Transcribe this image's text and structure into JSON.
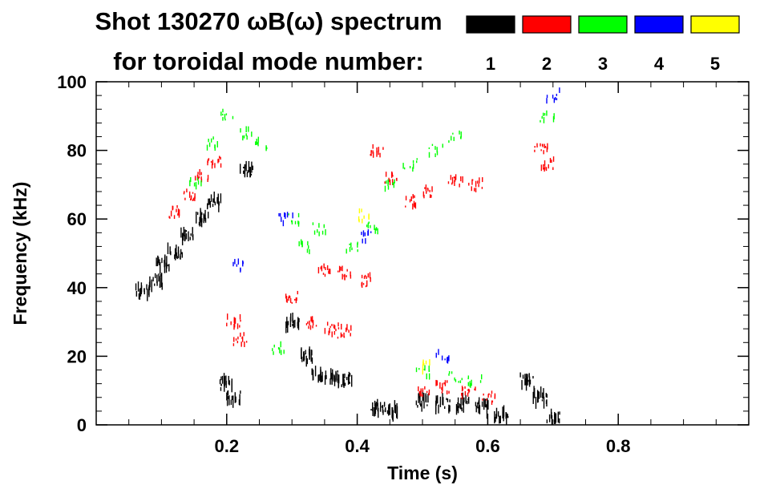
{
  "chart_data": {
    "type": "heatmap",
    "title_line1": "Shot 130270 ωB(ω) spectrum",
    "title_line2": "for toroidal mode number:",
    "xlabel": "Time (s)",
    "ylabel": "Frequency (kHz)",
    "xlim": [
      0.0,
      1.0
    ],
    "ylim": [
      0,
      100
    ],
    "x_ticks": [
      0.2,
      0.4,
      0.6,
      0.8
    ],
    "y_ticks": [
      0,
      20,
      40,
      60,
      80,
      100
    ],
    "grid": false,
    "legend_placement": "top-right",
    "legend": [
      {
        "label": "1",
        "color": "#000000"
      },
      {
        "label": "2",
        "color": "#ff0000"
      },
      {
        "label": "3",
        "color": "#00ff00"
      },
      {
        "label": "4",
        "color": "#0000ff"
      },
      {
        "label": "5",
        "color": "#ffff00"
      }
    ],
    "series": [
      {
        "n": 1,
        "points": [
          [
            0.07,
            39
          ],
          [
            0.09,
            42
          ],
          [
            0.1,
            47
          ],
          [
            0.12,
            50
          ],
          [
            0.14,
            55
          ],
          [
            0.16,
            60
          ],
          [
            0.18,
            65
          ],
          [
            0.2,
            12
          ],
          [
            0.21,
            8
          ],
          [
            0.23,
            74
          ],
          [
            0.3,
            30
          ],
          [
            0.32,
            20
          ],
          [
            0.34,
            15
          ],
          [
            0.36,
            14
          ],
          [
            0.38,
            13
          ],
          [
            0.43,
            5
          ],
          [
            0.45,
            4
          ],
          [
            0.5,
            7
          ],
          [
            0.53,
            6
          ],
          [
            0.56,
            6
          ],
          [
            0.59,
            5
          ],
          [
            0.62,
            3
          ],
          [
            0.66,
            13
          ],
          [
            0.68,
            8
          ],
          [
            0.7,
            2
          ]
        ]
      },
      {
        "n": 2,
        "points": [
          [
            0.12,
            62
          ],
          [
            0.14,
            67
          ],
          [
            0.16,
            72
          ],
          [
            0.18,
            77
          ],
          [
            0.21,
            30
          ],
          [
            0.22,
            25
          ],
          [
            0.3,
            37
          ],
          [
            0.33,
            30
          ],
          [
            0.36,
            28
          ],
          [
            0.38,
            27
          ],
          [
            0.35,
            45
          ],
          [
            0.38,
            44
          ],
          [
            0.41,
            42
          ],
          [
            0.43,
            80
          ],
          [
            0.45,
            72
          ],
          [
            0.48,
            65
          ],
          [
            0.51,
            68
          ],
          [
            0.55,
            71
          ],
          [
            0.58,
            70
          ],
          [
            0.5,
            10
          ],
          [
            0.53,
            11
          ],
          [
            0.57,
            10
          ],
          [
            0.6,
            8
          ],
          [
            0.68,
            80
          ],
          [
            0.69,
            76
          ]
        ]
      },
      {
        "n": 3,
        "points": [
          [
            0.15,
            70
          ],
          [
            0.18,
            82
          ],
          [
            0.2,
            90
          ],
          [
            0.23,
            85
          ],
          [
            0.25,
            82
          ],
          [
            0.3,
            60
          ],
          [
            0.32,
            52
          ],
          [
            0.34,
            57
          ],
          [
            0.39,
            52
          ],
          [
            0.42,
            58
          ],
          [
            0.45,
            70
          ],
          [
            0.48,
            76
          ],
          [
            0.52,
            80
          ],
          [
            0.55,
            84
          ],
          [
            0.5,
            15
          ],
          [
            0.55,
            14
          ],
          [
            0.58,
            13
          ],
          [
            0.69,
            90
          ],
          [
            0.28,
            22
          ]
        ]
      },
      {
        "n": 4,
        "points": [
          [
            0.22,
            46
          ],
          [
            0.29,
            60
          ],
          [
            0.41,
            55
          ],
          [
            0.53,
            20
          ],
          [
            0.7,
            96
          ]
        ]
      },
      {
        "n": 5,
        "points": [
          [
            0.41,
            61
          ],
          [
            0.5,
            17
          ]
        ]
      }
    ]
  }
}
